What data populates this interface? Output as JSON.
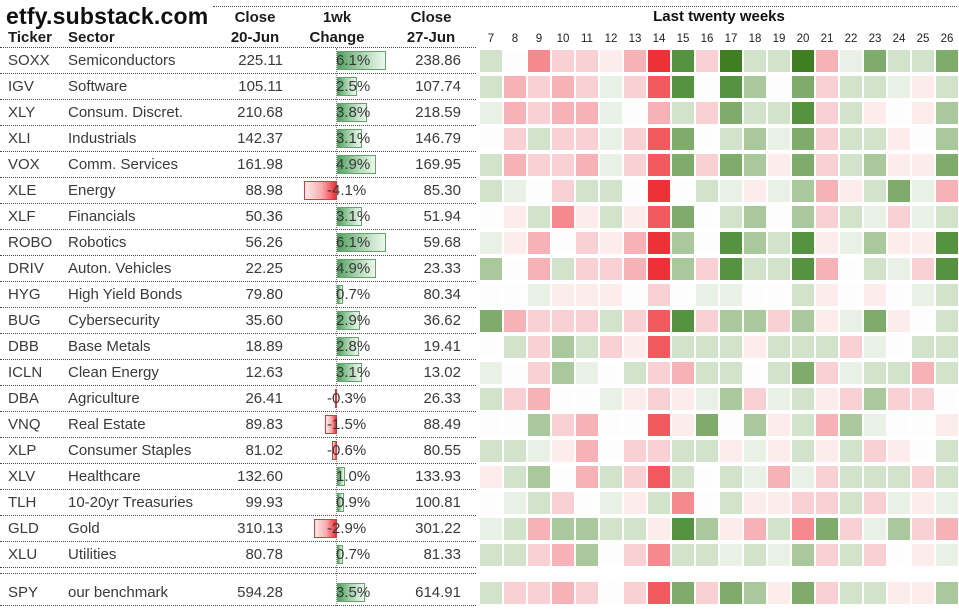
{
  "header": {
    "site": "etfy.substack.com",
    "col_ticker": "Ticker",
    "col_sector": "Sector",
    "close1_line1": "Close",
    "close1_line2": "20-Jun",
    "change_line1": "1wk",
    "change_line2": "Change",
    "close2_line1": "Close",
    "close2_line2": "27-Jun",
    "heatmap_title": "Last twenty weeks"
  },
  "colors": {
    "strong_green": "#3f7e23",
    "strong_red": "#ee3137",
    "bar_green_border": "#5fa668",
    "bar_red_border": "#e23439",
    "heat_palette": {
      "-6": "#ee3137",
      "-5": "#f25a60",
      "-4": "#f48a8e",
      "-3": "#f6b2b6",
      "-2": "#f9d0d3",
      "-1": "#fdecec",
      "0": "#fcfdfc",
      "1": "#e9f1e6",
      "2": "#d2e3cb",
      "3": "#a9c89c",
      "4": "#7fab6b",
      "5": "#569340",
      "6": "#3f7e23"
    }
  },
  "table": {
    "rows": [
      {
        "ticker": "SOXX",
        "sector": "Semiconductors",
        "close1": "225.11",
        "change": 6.1,
        "change_label": "6.1%",
        "close2": "238.86"
      },
      {
        "ticker": "IGV",
        "sector": "Software",
        "close1": "105.11",
        "change": 2.5,
        "change_label": "2.5%",
        "close2": "107.74"
      },
      {
        "ticker": "XLY",
        "sector": "Consum. Discret.",
        "close1": "210.68",
        "change": 3.8,
        "change_label": "3.8%",
        "close2": "218.59"
      },
      {
        "ticker": "XLI",
        "sector": "Industrials",
        "close1": "142.37",
        "change": 3.1,
        "change_label": "3.1%",
        "close2": "146.79"
      },
      {
        "ticker": "VOX",
        "sector": "Comm. Services",
        "close1": "161.98",
        "change": 4.9,
        "change_label": "4.9%",
        "close2": "169.95"
      },
      {
        "ticker": "XLE",
        "sector": "Energy",
        "close1": "88.98",
        "change": -4.1,
        "change_label": "-4.1%",
        "close2": "85.30"
      },
      {
        "ticker": "XLF",
        "sector": "Financials",
        "close1": "50.36",
        "change": 3.1,
        "change_label": "3.1%",
        "close2": "51.94"
      },
      {
        "ticker": "ROBO",
        "sector": "Robotics",
        "close1": "56.26",
        "change": 6.1,
        "change_label": "6.1%",
        "close2": "59.68"
      },
      {
        "ticker": "DRIV",
        "sector": "Auton. Vehicles",
        "close1": "22.25",
        "change": 4.9,
        "change_label": "4.9%",
        "close2": "23.33"
      },
      {
        "ticker": "HYG",
        "sector": "High Yield Bonds",
        "close1": "79.80",
        "change": 0.7,
        "change_label": "0.7%",
        "close2": "80.34"
      },
      {
        "ticker": "BUG",
        "sector": "Cybersecurity",
        "close1": "35.60",
        "change": 2.9,
        "change_label": "2.9%",
        "close2": "36.62"
      },
      {
        "ticker": "DBB",
        "sector": "Base Metals",
        "close1": "18.89",
        "change": 2.8,
        "change_label": "2.8%",
        "close2": "19.41"
      },
      {
        "ticker": "ICLN",
        "sector": "Clean Energy",
        "close1": "12.63",
        "change": 3.1,
        "change_label": "3.1%",
        "close2": "13.02"
      },
      {
        "ticker": "DBA",
        "sector": "Agriculture",
        "close1": "26.41",
        "change": -0.3,
        "change_label": "-0.3%",
        "close2": "26.33"
      },
      {
        "ticker": "VNQ",
        "sector": "Real Estate",
        "close1": "89.83",
        "change": -1.5,
        "change_label": "-1.5%",
        "close2": "88.49"
      },
      {
        "ticker": "XLP",
        "sector": "Consumer Staples",
        "close1": "81.02",
        "change": -0.6,
        "change_label": "-0.6%",
        "close2": "80.55"
      },
      {
        "ticker": "XLV",
        "sector": "Healthcare",
        "close1": "132.60",
        "change": 1.0,
        "change_label": "1.0%",
        "close2": "133.93"
      },
      {
        "ticker": "TLH",
        "sector": "10-20yr Treasuries",
        "close1": "99.93",
        "change": 0.9,
        "change_label": "0.9%",
        "close2": "100.81"
      },
      {
        "ticker": "GLD",
        "sector": "Gold",
        "close1": "310.13",
        "change": -2.9,
        "change_label": "-2.9%",
        "close2": "301.22"
      },
      {
        "ticker": "XLU",
        "sector": "Utilities",
        "close1": "80.78",
        "change": 0.7,
        "change_label": "0.7%",
        "close2": "81.33"
      },
      {
        "ticker": "SPY",
        "sector": "our benchmark",
        "close1": "594.28",
        "change": 3.5,
        "change_label": "3.5%",
        "close2": "614.91"
      }
    ]
  },
  "chart_data": {
    "type": "heatmap",
    "title": "Last twenty weeks",
    "x_labels": [
      "7",
      "8",
      "9",
      "10",
      "11",
      "12",
      "13",
      "14",
      "15",
      "16",
      "17",
      "18",
      "19",
      "20",
      "21",
      "22",
      "23",
      "24",
      "25",
      "26"
    ],
    "y_labels": [
      "SOXX",
      "IGV",
      "XLY",
      "XLI",
      "VOX",
      "XLE",
      "XLF",
      "ROBO",
      "DRIV",
      "HYG",
      "BUG",
      "DBB",
      "ICLN",
      "DBA",
      "VNQ",
      "XLP",
      "XLV",
      "TLH",
      "GLD",
      "XLU",
      "SPY"
    ],
    "legend_position": "none",
    "scale_note": "weekly return intensity estimated from cell color: -6 strong red loss .. 0 flat .. +6 strong green gain",
    "values": [
      [
        2,
        0,
        -4,
        -2,
        -2,
        -1,
        -3,
        -6,
        5,
        -2,
        6,
        2,
        2,
        6,
        -3,
        1,
        4,
        2,
        2,
        4
      ],
      [
        2,
        -3,
        -2,
        -3,
        -2,
        1,
        -2,
        -5,
        5,
        0,
        5,
        3,
        0,
        4,
        -2,
        2,
        2,
        1,
        -1,
        2
      ],
      [
        1,
        -3,
        -2,
        -3,
        -3,
        1,
        0,
        -3,
        2,
        -2,
        4,
        2,
        2,
        5,
        -2,
        2,
        -1,
        0,
        -1,
        3
      ],
      [
        0,
        -2,
        2,
        -2,
        -2,
        1,
        -2,
        -5,
        4,
        0,
        2,
        3,
        1,
        4,
        -2,
        2,
        2,
        -1,
        0,
        3
      ],
      [
        2,
        -3,
        -2,
        -2,
        -3,
        1,
        -2,
        -5,
        4,
        -2,
        4,
        3,
        -1,
        4,
        -2,
        2,
        3,
        -1,
        -1,
        4
      ],
      [
        2,
        1,
        0,
        -2,
        2,
        2,
        0,
        -6,
        0,
        2,
        1,
        -1,
        1,
        3,
        -3,
        -1,
        2,
        4,
        1,
        -3
      ],
      [
        0,
        -1,
        2,
        -4,
        -1,
        2,
        -1,
        -5,
        4,
        0,
        2,
        3,
        0,
        3,
        -2,
        2,
        1,
        -2,
        1,
        2
      ],
      [
        1,
        -1,
        -3,
        0,
        -2,
        -1,
        -3,
        -6,
        3,
        0,
        5,
        3,
        2,
        5,
        -1,
        1,
        3,
        -1,
        -1,
        5
      ],
      [
        3,
        0,
        -3,
        2,
        -2,
        -2,
        -3,
        -6,
        3,
        -2,
        5,
        2,
        2,
        5,
        -3,
        0,
        2,
        1,
        -2,
        5
      ],
      [
        0,
        0,
        1,
        -1,
        -1,
        -1,
        0,
        -2,
        0,
        1,
        1,
        0,
        0,
        2,
        -1,
        0,
        -1,
        0,
        1,
        2
      ],
      [
        4,
        -3,
        -2,
        -2,
        -2,
        2,
        -2,
        -5,
        5,
        -2,
        3,
        3,
        -2,
        3,
        -1,
        1,
        4,
        -1,
        0,
        2
      ],
      [
        0,
        2,
        -2,
        3,
        2,
        -2,
        -1,
        -5,
        2,
        2,
        2,
        -1,
        2,
        2,
        2,
        -2,
        1,
        0,
        2,
        2
      ],
      [
        1,
        0,
        -2,
        3,
        1,
        0,
        2,
        -2,
        -3,
        2,
        2,
        0,
        2,
        4,
        -2,
        1,
        2,
        2,
        -3,
        2
      ],
      [
        2,
        -2,
        -3,
        0,
        0,
        1,
        -1,
        -2,
        -1,
        1,
        3,
        -2,
        1,
        2,
        -1,
        -2,
        3,
        -2,
        -2,
        0
      ],
      [
        0,
        0,
        3,
        -2,
        -3,
        0,
        0,
        -5,
        -1,
        4,
        0,
        3,
        -1,
        2,
        -3,
        3,
        1,
        0,
        0,
        -1
      ],
      [
        2,
        2,
        1,
        -1,
        -3,
        0,
        -2,
        -2,
        2,
        2,
        -1,
        1,
        -1,
        2,
        -1,
        2,
        -2,
        -1,
        0,
        2
      ],
      [
        -1,
        2,
        3,
        0,
        -3,
        2,
        -2,
        -5,
        2,
        0,
        2,
        1,
        -3,
        1,
        -2,
        2,
        2,
        2,
        -2,
        2
      ],
      [
        0,
        1,
        2,
        -2,
        0,
        1,
        -1,
        2,
        -4,
        0,
        2,
        -1,
        -1,
        -2,
        -2,
        2,
        -2,
        1,
        -1,
        1
      ],
      [
        1,
        2,
        -3,
        3,
        3,
        2,
        2,
        -1,
        5,
        3,
        -1,
        -3,
        2,
        -4,
        4,
        -2,
        1,
        3,
        -2,
        -3
      ],
      [
        2,
        2,
        -2,
        -3,
        3,
        0,
        -2,
        -4,
        2,
        2,
        1,
        2,
        1,
        3,
        -2,
        2,
        -2,
        0,
        -1,
        1
      ],
      [
        2,
        -2,
        -2,
        -3,
        -2,
        0,
        -2,
        -5,
        4,
        -2,
        4,
        3,
        -1,
        4,
        -2,
        2,
        2,
        -1,
        -1,
        3
      ]
    ]
  }
}
